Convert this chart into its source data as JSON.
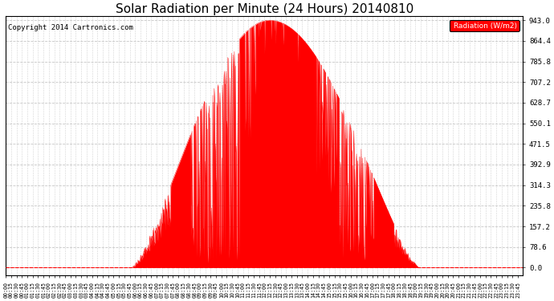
{
  "title": "Solar Radiation per Minute (24 Hours) 20140810",
  "copyright_text": "Copyright 2014 Cartronics.com",
  "legend_label": "Radiation (W/m2)",
  "y_tick_values": [
    0.0,
    78.6,
    157.2,
    235.8,
    314.3,
    392.9,
    471.5,
    550.1,
    628.7,
    707.2,
    785.8,
    864.4,
    943.0
  ],
  "y_max": 943.0,
  "y_min": 0.0,
  "fill_color": "#FF0000",
  "line_color": "#FF0000",
  "background_color": "#FFFFFF",
  "grid_color": "#C0C0C0",
  "dashed_line_color": "#FF0000",
  "title_fontsize": 11,
  "copyright_fontsize": 6.5,
  "total_minutes": 1440,
  "sunrise_minute": 350,
  "sunset_minute": 1150,
  "peak_minute": 735,
  "peak_value": 943.0
}
